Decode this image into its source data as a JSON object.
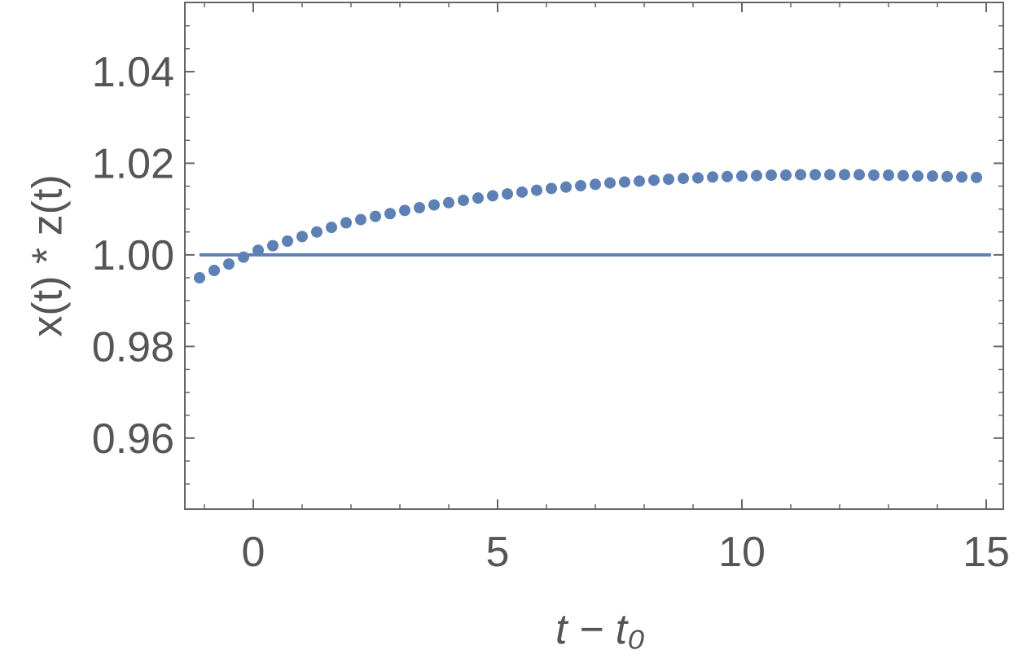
{
  "chart_data": {
    "type": "scatter",
    "xlabel": "t − t₀",
    "ylabel": "x(t) * z(t)",
    "series": [
      {
        "type": "scatter",
        "color": "#5e81b5",
        "x": [
          -1.1,
          -0.8,
          -0.5,
          -0.2,
          0.1,
          0.4,
          0.7,
          1.0,
          1.3,
          1.6,
          1.9,
          2.2,
          2.5,
          2.8,
          3.1,
          3.4,
          3.7,
          4.0,
          4.3,
          4.6,
          4.9,
          5.2,
          5.5,
          5.8,
          6.1,
          6.4,
          6.7,
          7.0,
          7.3,
          7.6,
          7.9,
          8.2,
          8.5,
          8.8,
          9.1,
          9.4,
          9.7,
          10.0,
          10.3,
          10.6,
          10.9,
          11.2,
          11.5,
          11.8,
          12.1,
          12.4,
          12.7,
          13.0,
          13.3,
          13.6,
          13.9,
          14.2,
          14.5,
          14.8
        ],
        "values": [
          0.995,
          0.9966,
          0.998,
          0.9995,
          1.001,
          1.002,
          1.003,
          1.004,
          1.005,
          1.006,
          1.007,
          1.0077,
          1.0084,
          1.009,
          1.0097,
          1.0103,
          1.0109,
          1.0114,
          1.0119,
          1.0124,
          1.0129,
          1.0133,
          1.0137,
          1.0141,
          1.0145,
          1.0148,
          1.0151,
          1.0154,
          1.0157,
          1.0159,
          1.0161,
          1.0163,
          1.0165,
          1.0167,
          1.0168,
          1.017,
          1.0171,
          1.0172,
          1.0173,
          1.0174,
          1.0174,
          1.0175,
          1.0175,
          1.0175,
          1.0175,
          1.0175,
          1.0174,
          1.0174,
          1.0173,
          1.0172,
          1.0172,
          1.0171,
          1.017,
          1.0169
        ]
      },
      {
        "type": "line",
        "color": "#5e81b5",
        "x": [
          -1.1,
          15.1
        ],
        "values": [
          1,
          1
        ]
      }
    ],
    "xlim": [
      -1.4,
      15.35
    ],
    "ylim": [
      0.9445,
      1.0551
    ],
    "xticks": [
      0,
      5,
      10,
      15
    ],
    "yticks": [
      0.96,
      0.98,
      {
        "value": 1,
        "label": "1.00"
      },
      1.02,
      1.04
    ],
    "xminorticks": [
      -1,
      1,
      2,
      3,
      4,
      6,
      7,
      8,
      9,
      11,
      12,
      13,
      14
    ],
    "yminorticks": [
      0.95,
      0.955,
      0.965,
      0.97,
      0.975,
      0.985,
      0.99,
      0.995,
      1.005,
      1.01,
      1.015,
      1.025,
      1.03,
      1.035,
      1.045,
      1.05
    ]
  }
}
